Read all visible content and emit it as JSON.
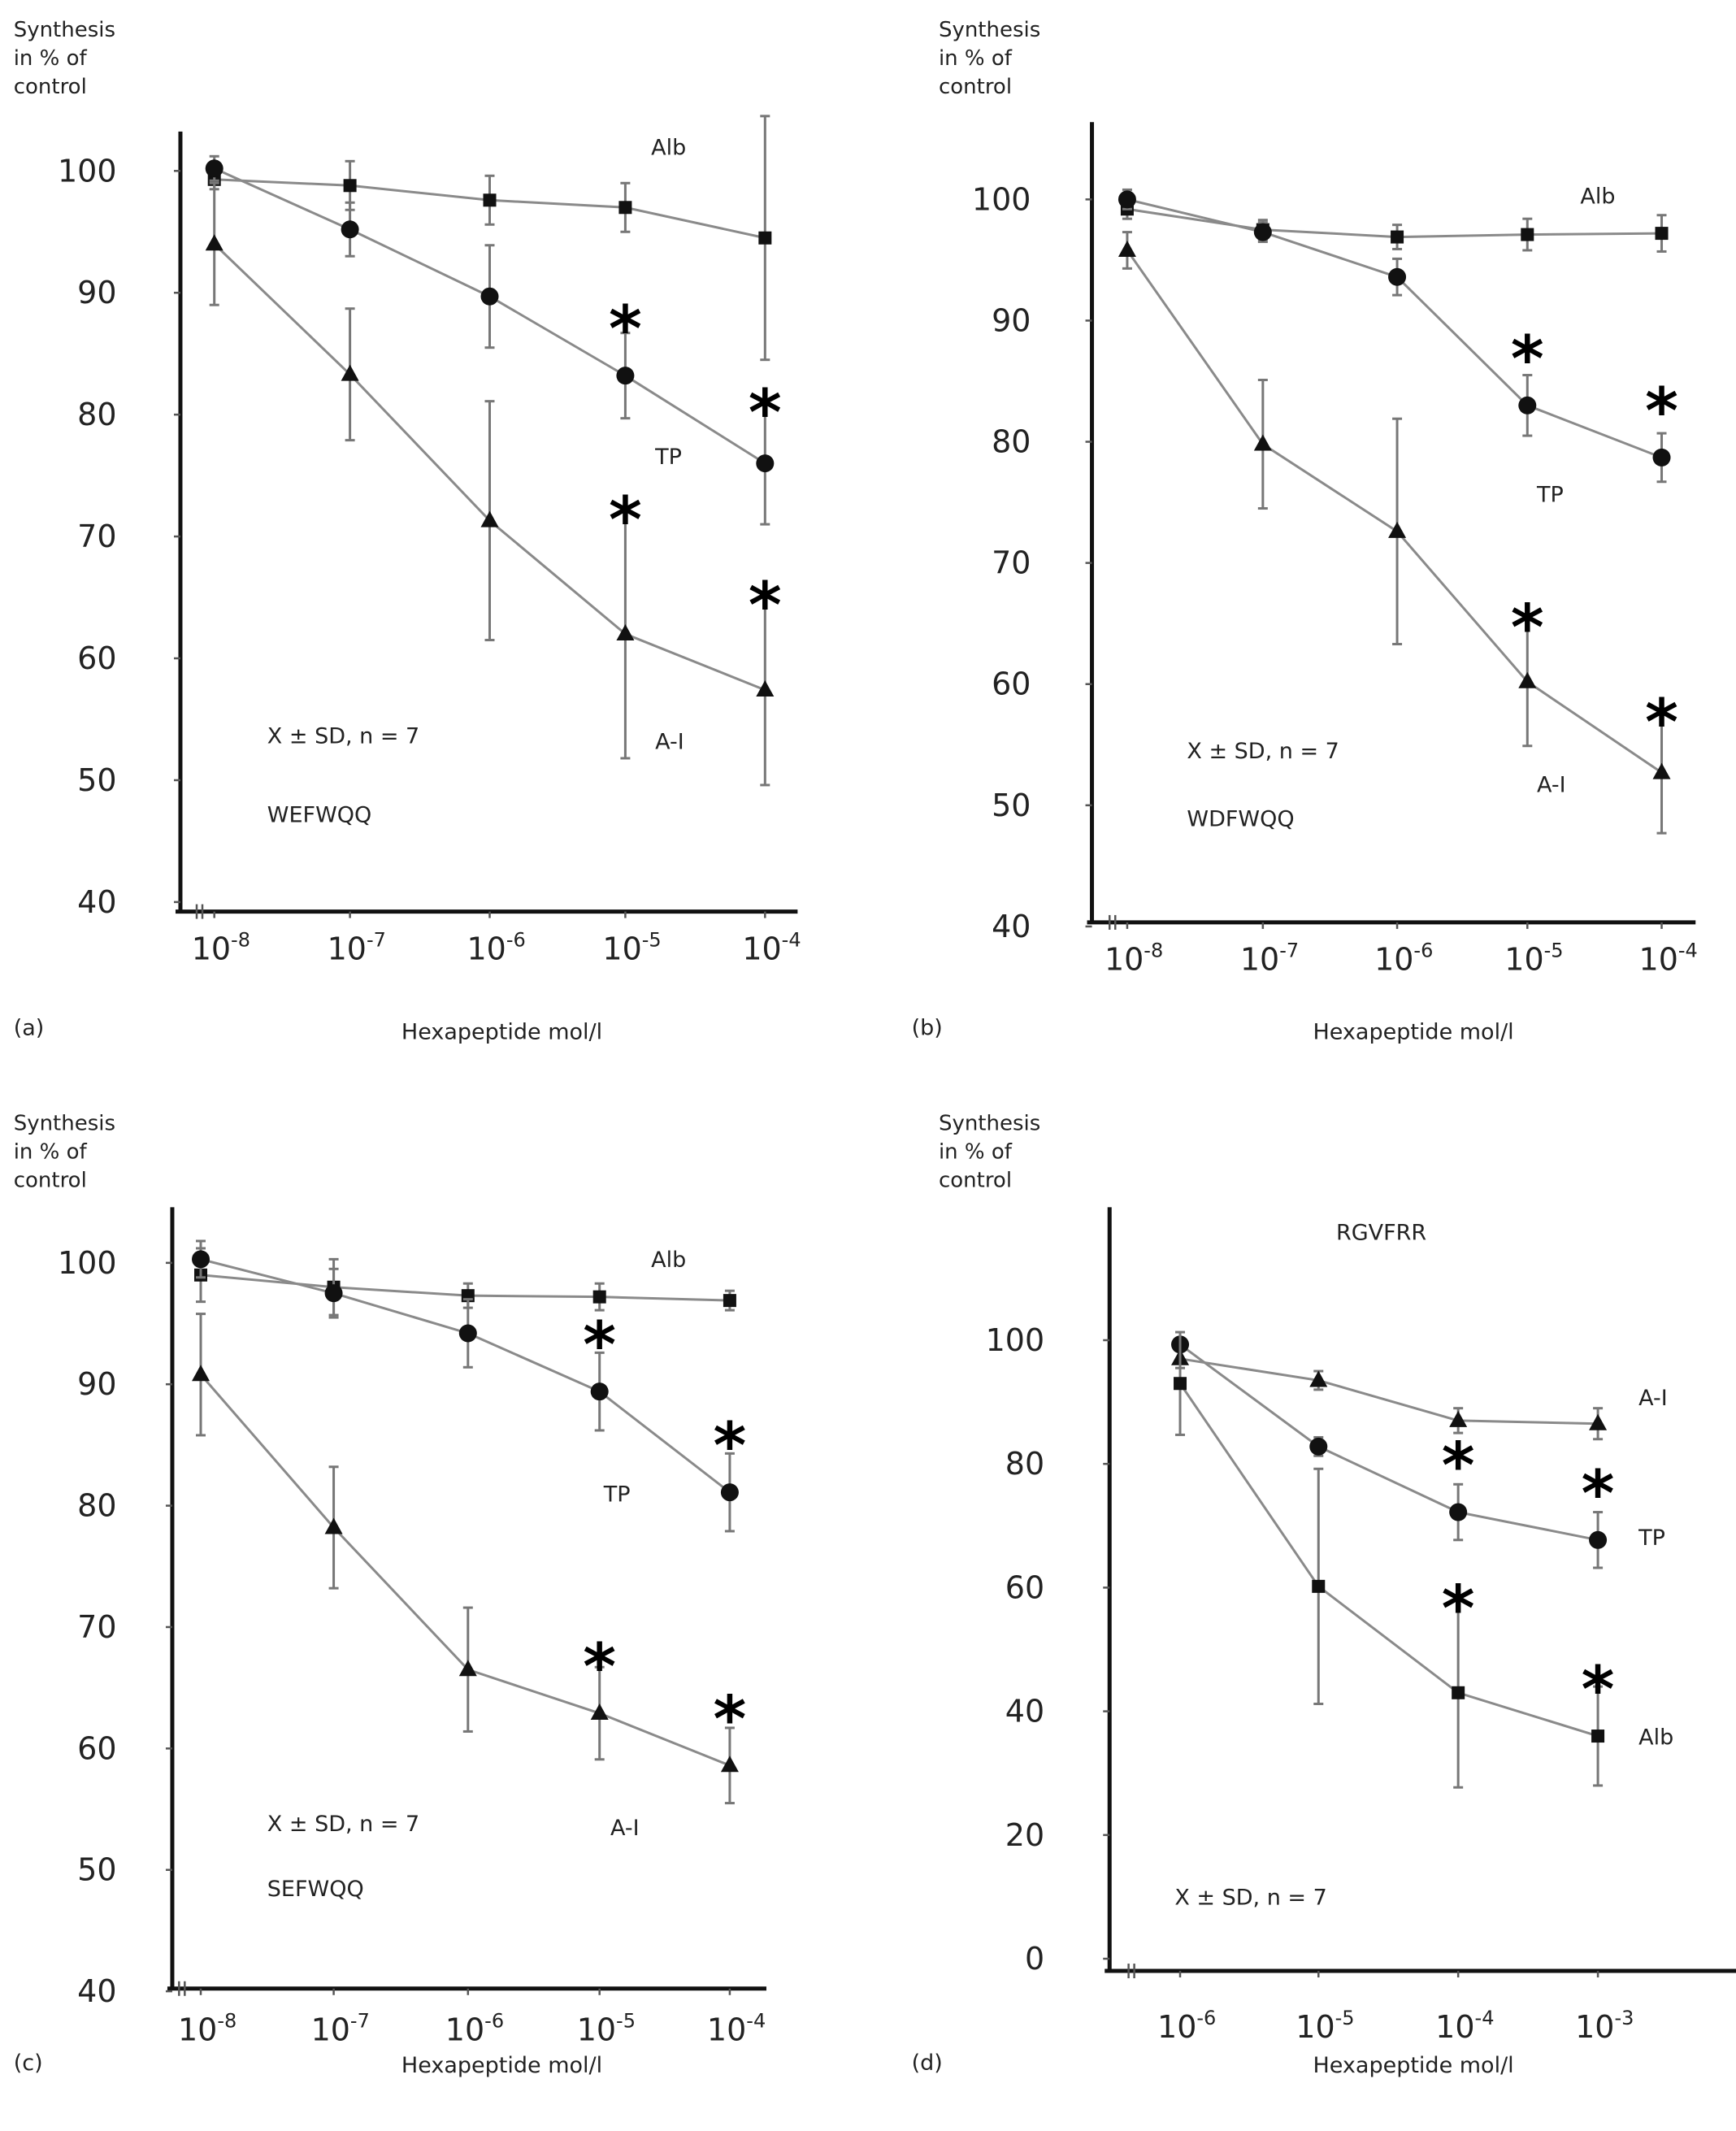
{
  "chart_data": [
    {
      "panel": "(a)",
      "type": "line",
      "peptide": "WEFWQQ",
      "annotation": "X ± SD, n = 7",
      "ylabel": [
        "Synthesis",
        "in % of",
        "control"
      ],
      "xlabel": "Hexapeptide mol/l",
      "xscale": "log",
      "x_ticks": [
        {
          "base": "10",
          "exp": "-8"
        },
        {
          "base": "10",
          "exp": "-7"
        },
        {
          "base": "10",
          "exp": "-6"
        },
        {
          "base": "10",
          "exp": "-5"
        },
        {
          "base": "10",
          "exp": "-4"
        }
      ],
      "x": [
        -8,
        -7,
        -6,
        -5,
        -4
      ],
      "ylim": [
        40,
        100
      ],
      "y_ticks": [
        100,
        90,
        80,
        70,
        60,
        50,
        40
      ],
      "series": [
        {
          "name": "Alb",
          "marker": "square",
          "values": [
            99.3,
            98.8,
            97.6,
            97.0,
            94.5
          ],
          "sd": [
            0.8,
            2.0,
            2.0,
            2.0,
            10.0
          ],
          "significant": [
            false,
            false,
            false,
            false,
            false
          ],
          "label_pos": "top"
        },
        {
          "name": "TP",
          "marker": "circle",
          "values": [
            100.2,
            95.2,
            89.7,
            83.2,
            76.0
          ],
          "sd": [
            1.0,
            2.2,
            4.2,
            3.5,
            5.0
          ],
          "significant": [
            false,
            false,
            false,
            true,
            true
          ],
          "label_pos": "middle"
        },
        {
          "name": "A-I",
          "marker": "triangle",
          "values": [
            94.0,
            83.3,
            71.3,
            62.0,
            57.4
          ],
          "sd": [
            5.0,
            5.4,
            9.8,
            10.2,
            7.8
          ],
          "significant": [
            false,
            false,
            false,
            true,
            true
          ],
          "label_pos": "bottom"
        }
      ]
    },
    {
      "panel": "(b)",
      "type": "line",
      "peptide": "WDFWQQ",
      "annotation": "X ± SD, n = 7",
      "ylabel": [
        "Synthesis",
        "in % of",
        "control"
      ],
      "xlabel": "Hexapeptide mol/l",
      "xscale": "log",
      "x_ticks": [
        {
          "base": "10",
          "exp": "-8"
        },
        {
          "base": "10",
          "exp": "-7"
        },
        {
          "base": "10",
          "exp": "-6"
        },
        {
          "base": "10",
          "exp": "-5"
        },
        {
          "base": "10",
          "exp": "-4"
        }
      ],
      "x": [
        -8,
        -7,
        -6,
        -5,
        -4
      ],
      "ylim": [
        40,
        100
      ],
      "y_ticks": [
        100,
        90,
        80,
        70,
        60,
        50,
        40
      ],
      "series": [
        {
          "name": "Alb",
          "marker": "square",
          "values": [
            99.2,
            97.5,
            96.9,
            97.1,
            97.2
          ],
          "sd": [
            0.8,
            0.8,
            1.0,
            1.3,
            1.5
          ],
          "significant": [
            false,
            false,
            false,
            false,
            false
          ],
          "label_pos": "top"
        },
        {
          "name": "TP",
          "marker": "circle",
          "values": [
            100.0,
            97.3,
            93.6,
            83.0,
            78.7
          ],
          "sd": [
            0.8,
            0.8,
            1.5,
            2.5,
            2.0
          ],
          "significant": [
            false,
            false,
            false,
            true,
            true
          ],
          "label_pos": "middle"
        },
        {
          "name": "A-I",
          "marker": "triangle",
          "values": [
            95.8,
            79.8,
            72.6,
            60.2,
            52.7
          ],
          "sd": [
            1.5,
            5.3,
            9.3,
            5.3,
            5.0
          ],
          "significant": [
            false,
            false,
            false,
            true,
            true
          ],
          "label_pos": "bottom"
        }
      ]
    },
    {
      "panel": "(c)",
      "type": "line",
      "peptide": "SEFWQQ",
      "annotation": "X ± SD, n = 7",
      "ylabel": [
        "Synthesis",
        "in % of",
        "control"
      ],
      "xlabel": "Hexapeptide mol/l",
      "xscale": "log",
      "x_ticks": [
        {
          "base": "10",
          "exp": "-8"
        },
        {
          "base": "10",
          "exp": "-7"
        },
        {
          "base": "10",
          "exp": "-6"
        },
        {
          "base": "10",
          "exp": "-5"
        },
        {
          "base": "10",
          "exp": "-4"
        }
      ],
      "x": [
        -8,
        -7,
        -6,
        -5,
        -4
      ],
      "ylim": [
        40,
        100
      ],
      "y_ticks": [
        100,
        90,
        80,
        70,
        60,
        50,
        40
      ],
      "series": [
        {
          "name": "Alb",
          "marker": "square",
          "values": [
            99.0,
            98.0,
            97.3,
            97.2,
            96.9
          ],
          "sd": [
            2.2,
            2.3,
            1.0,
            1.1,
            0.8
          ],
          "significant": [
            false,
            false,
            false,
            false,
            false
          ],
          "label_pos": "top"
        },
        {
          "name": "TP",
          "marker": "circle",
          "values": [
            100.3,
            97.5,
            94.2,
            89.4,
            81.1
          ],
          "sd": [
            1.5,
            2.0,
            2.8,
            3.2,
            3.2
          ],
          "significant": [
            false,
            false,
            false,
            true,
            true
          ],
          "label_pos": "middle"
        },
        {
          "name": "A-I",
          "marker": "triangle",
          "values": [
            90.8,
            78.2,
            66.5,
            62.9,
            58.6
          ],
          "sd": [
            5.0,
            5.0,
            5.1,
            3.8,
            3.1
          ],
          "significant": [
            false,
            false,
            false,
            true,
            true
          ],
          "label_pos": "bottom"
        }
      ]
    },
    {
      "panel": "(d)",
      "type": "line",
      "peptide": "RGVFRR",
      "annotation": "X ± SD, n = 7",
      "ylabel": [
        "Synthesis",
        "in % of",
        "control"
      ],
      "xlabel": "Hexapeptide mol/l",
      "xscale": "log",
      "x_ticks": [
        {
          "base": "10",
          "exp": "-6"
        },
        {
          "base": "10",
          "exp": "-5"
        },
        {
          "base": "10",
          "exp": "-4"
        },
        {
          "base": "10",
          "exp": "-3"
        }
      ],
      "x": [
        -6,
        -5,
        -4,
        -3
      ],
      "ylim": [
        0,
        100
      ],
      "y_ticks": [
        100,
        80,
        60,
        40,
        20,
        0
      ],
      "series": [
        {
          "name": "A-I",
          "marker": "triangle",
          "values": [
            97.0,
            93.5,
            87.0,
            86.5
          ],
          "sd": [
            1.5,
            1.5,
            2.0,
            2.5
          ],
          "significant": [
            false,
            false,
            false,
            false
          ],
          "label_pos": "top"
        },
        {
          "name": "TP",
          "marker": "circle",
          "values": [
            99.3,
            82.8,
            72.2,
            67.7
          ],
          "sd": [
            1.0,
            1.5,
            4.5,
            4.5
          ],
          "significant": [
            false,
            false,
            true,
            true
          ],
          "label_pos": "middle"
        },
        {
          "name": "Alb",
          "marker": "square",
          "values": [
            93.0,
            60.2,
            43.0,
            36.0
          ],
          "sd": [
            8.3,
            19.0,
            15.3,
            8.0
          ],
          "significant": [
            false,
            false,
            true,
            true
          ],
          "label_pos": "bottom"
        }
      ]
    }
  ]
}
